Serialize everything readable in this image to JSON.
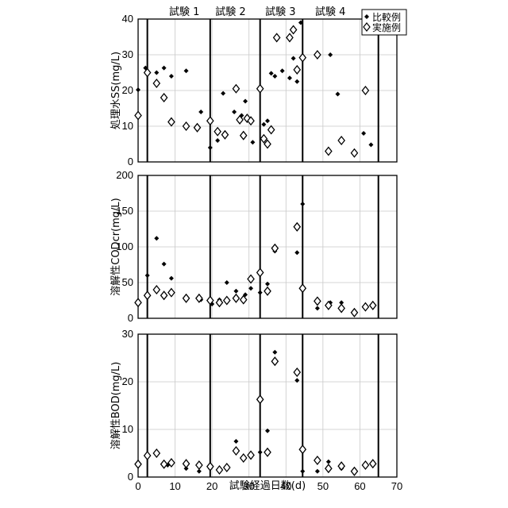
{
  "chart_data": {
    "type": "scatter",
    "x_label": "試験経過日数(d)",
    "x_ticks": [
      "0",
      "10",
      "20",
      "30",
      "40",
      "50",
      "60",
      "70"
    ],
    "xlim": [
      0,
      70
    ],
    "legend": [
      "比較例",
      "実施例"
    ],
    "legend_position": "top-right",
    "trials": [
      "試験 1",
      "試験 2",
      "試験 3",
      "試験 4"
    ],
    "trial_boundaries": [
      2.5,
      19.5,
      33,
      44.5,
      65
    ],
    "trial_label_x": [
      12.5,
      25,
      38.5,
      52
    ],
    "grid": true,
    "panels": [
      {
        "ylabel": "処理水SS(mg/L)",
        "ylim": [
          0,
          40
        ],
        "y_ticks": [
          "0",
          "10",
          "20",
          "30",
          "40"
        ],
        "series": [
          {
            "name": "比較例",
            "marker": "filled-diamond",
            "x": [
              0,
              2,
              5,
              7,
              9,
              13,
              17,
              19.5,
              21.5,
              23,
              26,
              28,
              29,
              31,
              33,
              34,
              35,
              36,
              37,
              39,
              41,
              42,
              43,
              44,
              52,
              54,
              61,
              63
            ],
            "y": [
              20.2,
              26.3,
              25,
              26.3,
              24,
              25.5,
              14,
              4,
              6,
              19.2,
              14,
              13,
              17,
              5.5,
              20.5,
              10.5,
              11.5,
              24.8,
              24,
              25.5,
              23.5,
              29,
              22.5,
              39,
              30,
              19,
              8,
              4.8
            ]
          },
          {
            "name": "実施例",
            "marker": "open-diamond",
            "x": [
              0,
              2.5,
              5,
              7,
              9,
              13,
              16,
              19.5,
              21.5,
              23.5,
              26.5,
              27.5,
              28.5,
              29.5,
              30.5,
              33,
              34,
              35,
              36,
              37.5,
              41,
              42,
              43,
              44.5,
              48.5,
              51.5,
              55,
              58.5,
              61.5
            ],
            "y": [
              13,
              25,
              22,
              18,
              11.2,
              10,
              9.6,
              11.5,
              8.5,
              7.6,
              20.5,
              11.8,
              7.4,
              12.2,
              11.5,
              20.5,
              6.5,
              5,
              9,
              34.8,
              34.8,
              37,
              25.8,
              29.2,
              30,
              3,
              6,
              2.5,
              20
            ]
          }
        ]
      },
      {
        "ylabel": "溶解性CODcr(mg/L)",
        "ylim": [
          0,
          200
        ],
        "y_ticks": [
          "0",
          "50",
          "100",
          "150",
          "200"
        ],
        "series": [
          {
            "name": "比較例",
            "marker": "filled-diamond",
            "x": [
              0,
              2.5,
              5,
              7,
              9,
              13,
              17,
              20,
              22,
              24,
              26.5,
              29,
              30.5,
              33,
              35,
              37,
              43,
              44.5,
              48.5,
              52,
              55,
              58.5,
              61.5,
              63.5
            ],
            "y": [
              21,
              60,
              112,
              76,
              56,
              30,
              26,
              20,
              26,
              50,
              38,
              33,
              42,
              36,
              48,
              94,
              92,
              160,
              14,
              22,
              22,
              10,
              14,
              20
            ]
          },
          {
            "name": "実施例",
            "marker": "open-diamond",
            "x": [
              0,
              2.5,
              5,
              7,
              9,
              13,
              16.5,
              19.5,
              22,
              24,
              26.5,
              28.5,
              30.5,
              33,
              35,
              37,
              43,
              44.5,
              48.5,
              51.5,
              55,
              58.5,
              61.5,
              63.5
            ],
            "y": [
              22,
              32,
              40,
              32,
              36,
              28,
              28,
              25,
              22,
              25,
              28,
              26,
              55,
              64,
              38,
              98,
              128,
              42,
              24,
              18,
              14,
              8,
              16,
              18
            ]
          }
        ]
      },
      {
        "ylabel": "溶解性BOD(mg/L)",
        "ylim": [
          0,
          30
        ],
        "y_ticks": [
          "0",
          "10",
          "20",
          "30"
        ],
        "series": [
          {
            "name": "比較例",
            "marker": "filled-diamond",
            "x": [
              0,
              2.5,
              5,
              8,
              9,
              13,
              16.5,
              19.5,
              22,
              24,
              26.5,
              28.5,
              30.5,
              33,
              35,
              37,
              43,
              44.5,
              48.5,
              51.5,
              55,
              58.5,
              61.5,
              63.5
            ],
            "y": [
              2.8,
              4.5,
              5,
              2.5,
              3,
              1.8,
              1.2,
              1.8,
              1.2,
              1.8,
              7.5,
              3.7,
              4.5,
              5.2,
              9.7,
              26.2,
              20.3,
              1.2,
              1.2,
              3.2,
              1.8,
              1.2,
              2.3,
              2.5
            ]
          },
          {
            "name": "実施例",
            "marker": "open-diamond",
            "x": [
              0,
              2.5,
              5,
              7,
              9,
              13,
              16.5,
              19.5,
              22,
              24,
              26.5,
              28.5,
              30.5,
              33,
              35,
              37,
              43,
              44.5,
              48.5,
              51.5,
              55,
              58.5,
              61.5,
              63.5
            ],
            "y": [
              2.7,
              4.5,
              5,
              2.7,
              3,
              2.8,
              2.5,
              2.2,
              1.5,
              2,
              5.5,
              4,
              4.6,
              16.3,
              5.2,
              24.3,
              22,
              5.8,
              3.5,
              1.8,
              2.3,
              1.2,
              2.5,
              2.8
            ]
          }
        ]
      }
    ]
  }
}
